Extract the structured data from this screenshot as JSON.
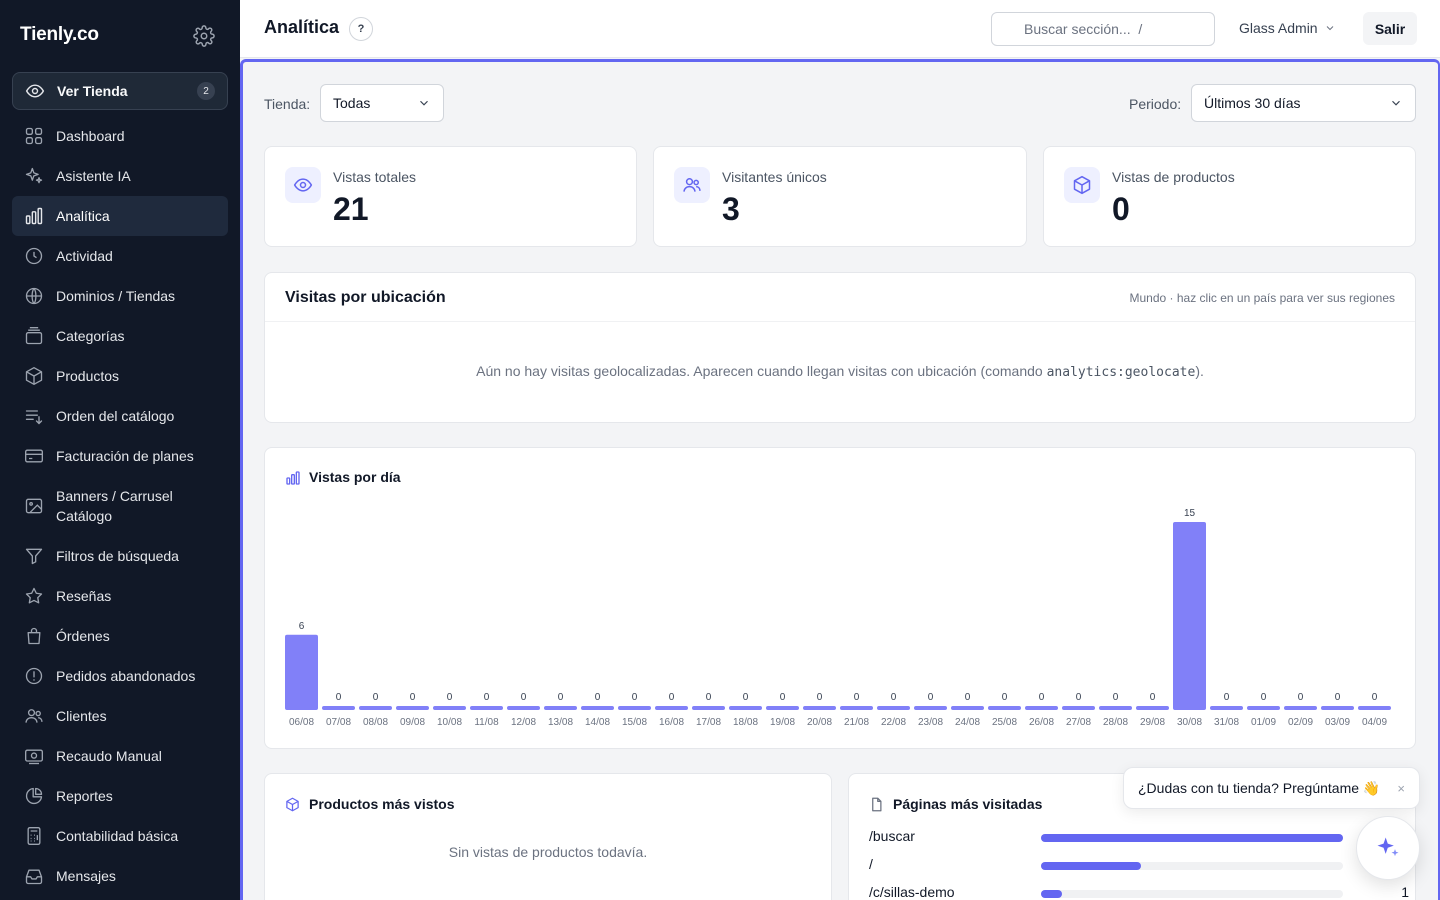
{
  "sidebar": {
    "brand": "Tienly.co",
    "ver_tienda": {
      "label": "Ver Tienda",
      "badge": "2"
    },
    "items": [
      {
        "label": "Dashboard",
        "icon": "grid-icon"
      },
      {
        "label": "Asistente IA",
        "icon": "sparkles-icon"
      },
      {
        "label": "Analítica",
        "icon": "bar-chart-icon",
        "active": true
      },
      {
        "label": "Actividad",
        "icon": "clock-icon"
      },
      {
        "label": "Dominios / Tiendas",
        "icon": "globe-icon"
      },
      {
        "label": "Categorías",
        "icon": "folder-stack-icon"
      },
      {
        "label": "Productos",
        "icon": "box-icon"
      },
      {
        "label": "Orden del catálogo",
        "icon": "sort-list-icon"
      },
      {
        "label": "Facturación de planes",
        "icon": "credit-card-icon"
      },
      {
        "label": "Banners / Carrusel Catálogo",
        "icon": "image-icon"
      },
      {
        "label": "Filtros de búsqueda",
        "icon": "filter-icon"
      },
      {
        "label": "Reseñas",
        "icon": "star-icon"
      },
      {
        "label": "Órdenes",
        "icon": "shopping-bag-icon"
      },
      {
        "label": "Pedidos abandonados",
        "icon": "alert-circle-icon"
      },
      {
        "label": "Clientes",
        "icon": "users-icon"
      },
      {
        "label": "Recaudo Manual",
        "icon": "cash-icon"
      },
      {
        "label": "Reportes",
        "icon": "pie-chart-icon"
      },
      {
        "label": "Contabilidad básica",
        "icon": "calculator-icon"
      },
      {
        "label": "Mensajes",
        "icon": "inbox-icon"
      }
    ]
  },
  "header": {
    "title": "Analítica",
    "help": "?",
    "search_placeholder": "Buscar sección...  /",
    "user": "Glass Admin",
    "logout": "Salir"
  },
  "filters": {
    "store_label": "Tienda:",
    "store_value": "Todas",
    "period_label": "Periodo:",
    "period_value": "Últimos 30 días"
  },
  "stats": [
    {
      "label": "Vistas totales",
      "value": "21",
      "icon": "eye-icon"
    },
    {
      "label": "Visitantes únicos",
      "value": "3",
      "icon": "users-icon"
    },
    {
      "label": "Vistas de productos",
      "value": "0",
      "icon": "box-icon"
    }
  ],
  "location": {
    "title": "Visitas por ubicación",
    "hint": "Mundo · haz clic en un país para ver sus regiones",
    "empty_before": "Aún no hay visitas geolocalizadas. Aparecen cuando llegan visitas con ubicación (comando ",
    "empty_code": "analytics:geolocate",
    "empty_after": ")."
  },
  "views_chart": {
    "title": "Vistas por día",
    "accent": "#8180f8"
  },
  "chart_data": {
    "type": "bar",
    "title": "Vistas por día",
    "categories": [
      "06/08",
      "07/08",
      "08/08",
      "09/08",
      "10/08",
      "11/08",
      "12/08",
      "13/08",
      "14/08",
      "15/08",
      "16/08",
      "17/08",
      "18/08",
      "19/08",
      "20/08",
      "21/08",
      "22/08",
      "23/08",
      "24/08",
      "25/08",
      "26/08",
      "27/08",
      "28/08",
      "29/08",
      "30/08",
      "31/08",
      "01/09",
      "02/09",
      "03/09",
      "04/09"
    ],
    "values": [
      6,
      0,
      0,
      0,
      0,
      0,
      0,
      0,
      0,
      0,
      0,
      0,
      0,
      0,
      0,
      0,
      0,
      0,
      0,
      0,
      0,
      0,
      0,
      0,
      15,
      0,
      0,
      0,
      0,
      0
    ],
    "ylim": [
      0,
      15
    ],
    "grid": false
  },
  "top_products": {
    "title": "Productos más vistos",
    "empty": "Sin vistas de productos todavía."
  },
  "top_pages": {
    "title": "Páginas más visitadas",
    "rows": [
      {
        "path": "/buscar",
        "share": 1.0,
        "count": ""
      },
      {
        "path": "/",
        "share": 0.33,
        "count": ""
      },
      {
        "path": "/c/sillas-demo",
        "share": 0.07,
        "count": "1"
      }
    ]
  },
  "assistant": {
    "bubble": "¿Dudas con tu tienda? Pregúntame 👋",
    "close": "×"
  },
  "colors": {
    "sidebar_bg": "#111827",
    "accent": "#6366f1",
    "bar": "#8180f8"
  }
}
